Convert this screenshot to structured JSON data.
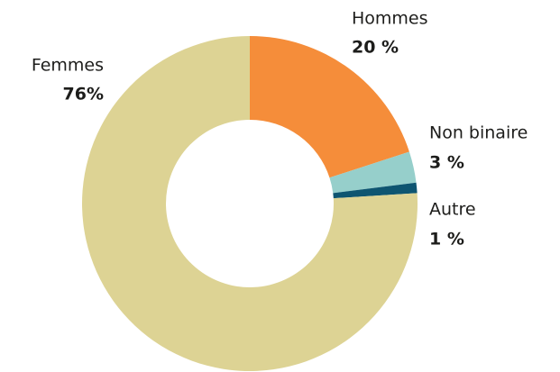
{
  "chart_data": {
    "type": "donut",
    "categories": [
      "Hommes",
      "Non binaire",
      "Autre",
      "Femmes"
    ],
    "values": [
      20,
      3,
      1,
      76
    ],
    "value_labels": [
      "20 %",
      "3 %",
      "1 %",
      "76%"
    ],
    "colors": [
      "#f58d3a",
      "#96cfcb",
      "#0e5571",
      "#ddd394"
    ]
  }
}
